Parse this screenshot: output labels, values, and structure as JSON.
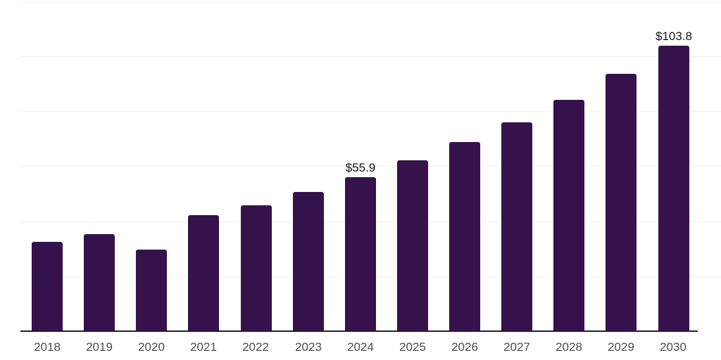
{
  "colors": {
    "bar": "#35124b",
    "axis_line": "#242424",
    "gridline": "#f1f1f3",
    "tick_label": "#4d4d4d",
    "value_label": "#141414",
    "background": "#ffffff"
  },
  "chart_data": {
    "type": "bar",
    "title": "",
    "xlabel": "",
    "ylabel": "",
    "categories": [
      "2018",
      "2019",
      "2020",
      "2021",
      "2022",
      "2023",
      "2024",
      "2025",
      "2026",
      "2027",
      "2028",
      "2029",
      "2030"
    ],
    "values": [
      32.5,
      35.4,
      29.7,
      42.2,
      45.8,
      50.7,
      55.9,
      62.0,
      68.8,
      76.0,
      84.2,
      93.5,
      103.8
    ],
    "value_labels": [
      "",
      "",
      "",
      "",
      "",
      "",
      "$55.9",
      "",
      "",
      "",
      "",
      "",
      "$103.8"
    ],
    "ylim": [
      0,
      120
    ],
    "gridline_values": [
      20,
      40,
      60,
      80,
      100,
      120
    ],
    "grid": true,
    "legend": false,
    "y_axis_ticks_visible": false,
    "bar_color": "#35124b"
  }
}
